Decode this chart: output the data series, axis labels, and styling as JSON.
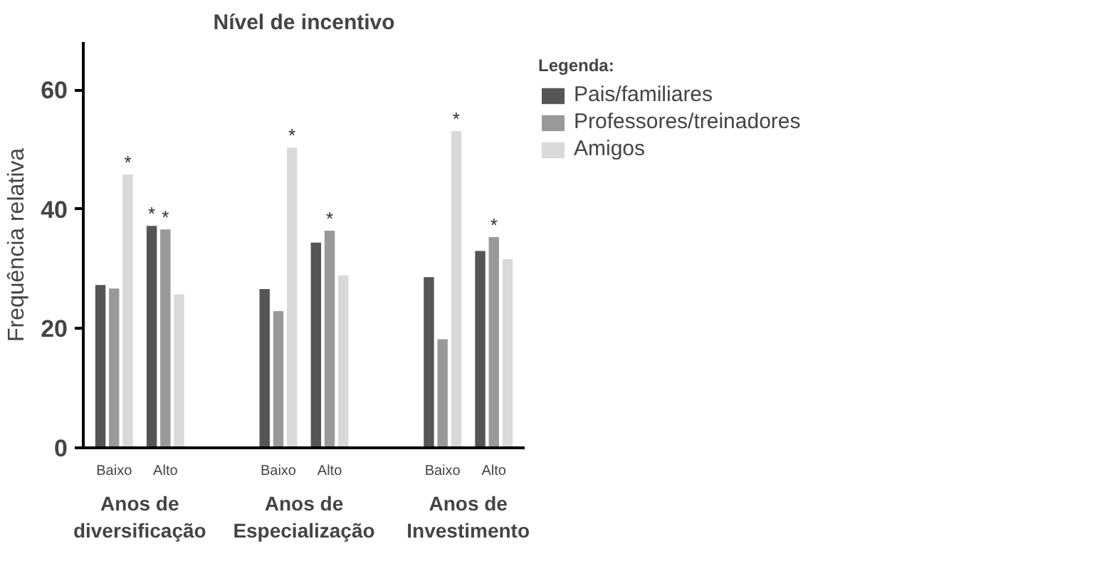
{
  "chart_data": {
    "type": "bar",
    "title": "Nível de incentivo",
    "ylabel": "Frequência relativa",
    "legend_title": "Legenda:",
    "categories": [
      "Baixo",
      "Alto",
      "Baixo",
      "Alto",
      "Baixo",
      "Alto"
    ],
    "series": [
      {
        "name": "Pais/familiares",
        "color": "#555555",
        "values": [
          27.3,
          37.2,
          26.6,
          34.4,
          28.6,
          33.0
        ],
        "value_labels": [
          null,
          "*",
          null,
          null,
          null,
          null
        ]
      },
      {
        "name": "Professores/treinadores",
        "color": "#999999",
        "values": [
          26.7,
          36.6,
          22.9,
          36.4,
          18.2,
          35.3
        ],
        "value_labels": [
          null,
          "*",
          null,
          "*",
          null,
          "*"
        ]
      },
      {
        "name": "Amigos",
        "color": "#d9d9d9",
        "values": [
          45.8,
          25.7,
          50.3,
          28.9,
          53.1,
          31.6
        ],
        "value_labels": [
          "*",
          null,
          "*",
          null,
          "*",
          null
        ]
      }
    ],
    "annotations": [
      "Anos de\ndiversificação",
      "Anos de\nEspecialização",
      "Anos de\nInvestimento"
    ],
    "ylim": [
      0,
      68
    ],
    "yticks": [
      0,
      20,
      40,
      60
    ],
    "grid": false,
    "legend": "top right"
  }
}
